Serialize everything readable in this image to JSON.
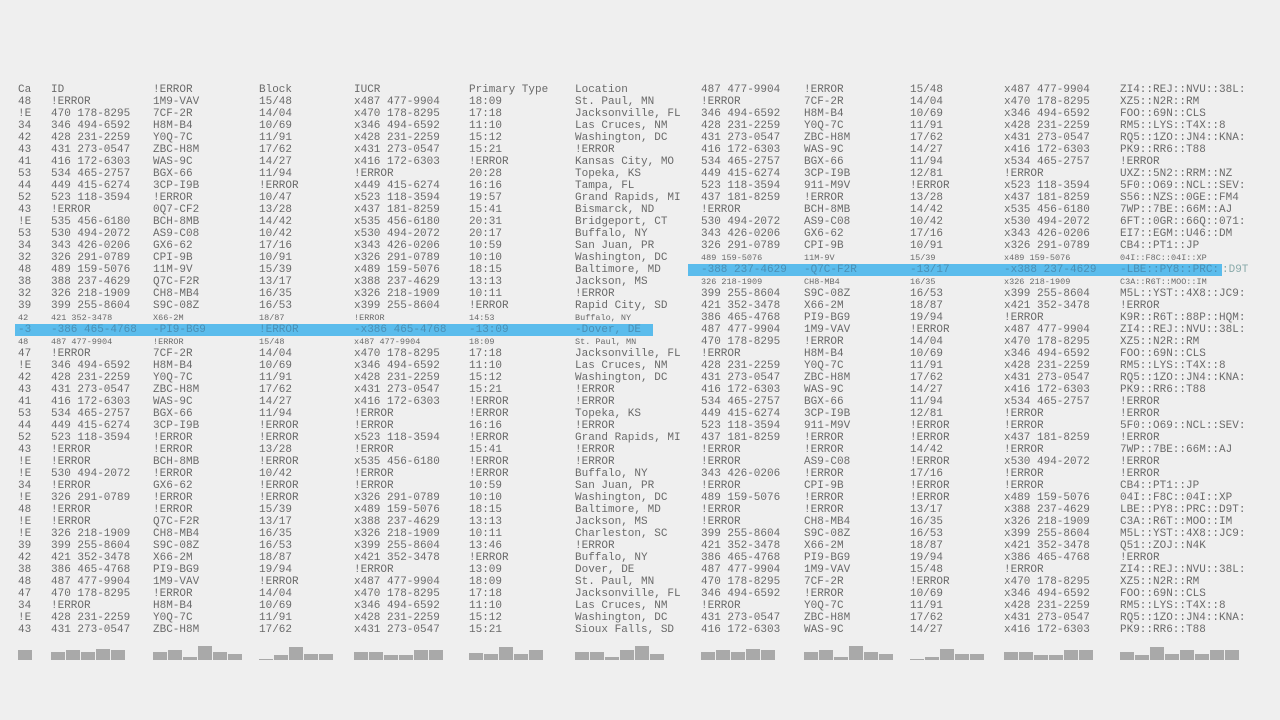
{
  "highlight_color": "#5bbcec",
  "left_table": {
    "headers": [
      "Ca",
      "ID",
      "!ERROR",
      "Block",
      "IUCR",
      "Primary Type",
      "Location"
    ],
    "rows": [
      {
        "cells": [
          "48",
          "!ERROR",
          "1M9-VAV",
          "15/48",
          "x487 477-9904",
          "18:09",
          "St. Paul, MN"
        ]
      },
      {
        "cells": [
          "!E",
          "470 178-8295",
          "7CF-2R",
          "14/04",
          "x470 178-8295",
          "17:18",
          "Jacksonville, FL"
        ]
      },
      {
        "cells": [
          "34",
          "346 494-6592",
          "H8M-B4",
          "10/69",
          "x346 494-6592",
          "11:10",
          "Las Cruces, NM"
        ]
      },
      {
        "cells": [
          "42",
          "428 231-2259",
          "Y0Q-7C",
          "11/91",
          "x428 231-2259",
          "15:12",
          "Washington, DC"
        ]
      },
      {
        "cells": [
          "43",
          "431 273-0547",
          "ZBC-H8M",
          "17/62",
          "x431 273-0547",
          "15:21",
          "!ERROR"
        ]
      },
      {
        "cells": [
          "41",
          "416 172-6303",
          "WAS-9C",
          "14/27",
          "x416 172-6303",
          "!ERROR",
          "Kansas City, MO"
        ]
      },
      {
        "cells": [
          "53",
          "534 465-2757",
          "BGX-66",
          "11/94",
          "!ERROR",
          "20:28",
          "Topeka, KS"
        ]
      },
      {
        "cells": [
          "44",
          "449 415-6274",
          "3CP-I9B",
          "!ERROR",
          "x449 415-6274",
          "16:16",
          "Tampa, FL"
        ]
      },
      {
        "cells": [
          "52",
          "523 118-3594",
          "!ERROR",
          "10/47",
          "x523 118-3594",
          "19:57",
          "Grand Rapids, MI"
        ]
      },
      {
        "cells": [
          "43",
          "!ERROR",
          "0Q7-CF2",
          "13/28",
          "x437 181-8259",
          "15:41",
          "Bismarck, ND"
        ]
      },
      {
        "cells": [
          "!E",
          "535 456-6180",
          "BCH-8MB",
          "14/42",
          "x535 456-6180",
          "20:31",
          "Bridgeport, CT"
        ]
      },
      {
        "cells": [
          "53",
          "530 494-2072",
          "AS9-C08",
          "10/42",
          "x530 494-2072",
          "20:17",
          "Buffalo, NY"
        ]
      },
      {
        "cells": [
          "34",
          "343 426-0206",
          "GX6-62",
          "17/16",
          "x343 426-0206",
          "10:59",
          "San Juan, PR"
        ]
      },
      {
        "cells": [
          "32",
          "326 291-0789",
          "CPI-9B",
          "10/91",
          "x326 291-0789",
          "10:10",
          "Washington, DC"
        ]
      },
      {
        "cells": [
          "48",
          "489 159-5076",
          "11M-9V",
          "15/39",
          "x489 159-5076",
          "18:15",
          "Baltimore, MD"
        ]
      },
      {
        "cells": [
          "38",
          "388 237-4629",
          "Q7C-F2R",
          "13/17",
          "x388 237-4629",
          "13:13",
          "Jackson, MS"
        ]
      },
      {
        "cells": [
          "32",
          "326 218-1909",
          "CH8-MB4",
          "16/35",
          "x326 218-1909",
          "10:11",
          "!ERROR"
        ]
      },
      {
        "cells": [
          "39",
          "399 255-8604",
          "S9C-08Z",
          "16/53",
          "x399 255-8604",
          "!ERROR",
          "Rapid City, SD"
        ]
      },
      {
        "style": "small",
        "cells": [
          "42",
          "421 352-3478",
          "X66-2M",
          "18/87",
          "!ERROR",
          "14:53",
          "Buffalo, NY"
        ]
      },
      {
        "style": "selected",
        "cells": [
          "-3",
          "-386 465-4768",
          "-PI9-BG9",
          "!ERROR",
          "-x386 465-4768",
          "-13:09",
          "-Dover, DE"
        ]
      },
      {
        "style": "small",
        "cells": [
          "48",
          "487 477-9904",
          "!ERROR",
          "15/48",
          "x487 477-9904",
          "18:09",
          "St. Paul, MN"
        ]
      },
      {
        "cells": [
          "47",
          "!ERROR",
          "7CF-2R",
          "14/04",
          "x470 178-8295",
          "17:18",
          "Jacksonville, FL"
        ]
      },
      {
        "cells": [
          "!E",
          "346 494-6592",
          "H8M-B4",
          "10/69",
          "x346 494-6592",
          "11:10",
          "Las Cruces, NM"
        ]
      },
      {
        "cells": [
          "42",
          "428 231-2259",
          "Y0Q-7C",
          "11/91",
          "x428 231-2259",
          "15:12",
          "Washington, DC"
        ]
      },
      {
        "cells": [
          "43",
          "431 273-0547",
          "ZBC-H8M",
          "17/62",
          "x431 273-0547",
          "15:21",
          "!ERROR"
        ]
      },
      {
        "cells": [
          "41",
          "416 172-6303",
          "WAS-9C",
          "14/27",
          "x416 172-6303",
          "!ERROR",
          "!ERROR"
        ]
      },
      {
        "cells": [
          "53",
          "534 465-2757",
          "BGX-66",
          "11/94",
          "!ERROR",
          "!ERROR",
          "Topeka, KS"
        ]
      },
      {
        "cells": [
          "44",
          "449 415-6274",
          "3CP-I9B",
          "!ERROR",
          "!ERROR",
          "16:16",
          "!ERROR"
        ]
      },
      {
        "cells": [
          "52",
          "523 118-3594",
          "!ERROR",
          "!ERROR",
          "x523 118-3594",
          "!ERROR",
          "Grand Rapids, MI"
        ]
      },
      {
        "cells": [
          "43",
          "!ERROR",
          "!ERROR",
          "13/28",
          "!ERROR",
          "15:41",
          "!ERROR"
        ]
      },
      {
        "cells": [
          "!E",
          "!ERROR",
          "BCH-8MB",
          "!ERROR",
          "x535 456-6180",
          "!ERROR",
          "!ERROR"
        ]
      },
      {
        "cells": [
          "!E",
          "530 494-2072",
          "!ERROR",
          "10/42",
          "!ERROR",
          "!ERROR",
          "Buffalo, NY"
        ]
      },
      {
        "cells": [
          "34",
          "!ERROR",
          "GX6-62",
          "!ERROR",
          "!ERROR",
          "10:59",
          "San Juan, PR"
        ]
      },
      {
        "cells": [
          "!E",
          "326 291-0789",
          "!ERROR",
          "!ERROR",
          "x326 291-0789",
          "10:10",
          "Washington, DC"
        ]
      },
      {
        "cells": [
          "48",
          "!ERROR",
          "!ERROR",
          "15/39",
          "x489 159-5076",
          "18:15",
          "Baltimore, MD"
        ]
      },
      {
        "cells": [
          "!E",
          "!ERROR",
          "Q7C-F2R",
          "13/17",
          "x388 237-4629",
          "13:13",
          "Jackson, MS"
        ]
      },
      {
        "cells": [
          "!E",
          "326 218-1909",
          "CH8-MB4",
          "16/35",
          "x326 218-1909",
          "10:11",
          "Charleston, SC"
        ]
      },
      {
        "cells": [
          "39",
          "399 255-8604",
          "S9C-08Z",
          "16/53",
          "x399 255-8604",
          "13:46",
          "!ERROR"
        ]
      },
      {
        "cells": [
          "42",
          "421 352-3478",
          "X66-2M",
          "18/87",
          "x421 352-3478",
          "!ERROR",
          "Buffalo, NY"
        ]
      },
      {
        "cells": [
          "38",
          "386 465-4768",
          "PI9-BG9",
          "19/94",
          "!ERROR",
          "13:09",
          "Dover, DE"
        ]
      },
      {
        "cells": [
          "48",
          "487 477-9904",
          "1M9-VAV",
          "!ERROR",
          "x487 477-9904",
          "18:09",
          "St. Paul, MN"
        ]
      },
      {
        "cells": [
          "47",
          "470 178-8295",
          "!ERROR",
          "14/04",
          "x470 178-8295",
          "17:18",
          "Jacksonville, FL"
        ]
      },
      {
        "cells": [
          "34",
          "!ERROR",
          "H8M-B4",
          "10/69",
          "x346 494-6592",
          "11:10",
          "Las Cruces, NM"
        ]
      },
      {
        "cells": [
          "!E",
          "428 231-2259",
          "Y0Q-7C",
          "11/91",
          "x428 231-2259",
          "15:12",
          "Washington, DC"
        ]
      },
      {
        "cells": [
          "43",
          "431 273-0547",
          "ZBC-H8M",
          "17/62",
          "x431 273-0547",
          "15:21",
          "Sioux Falls, SD"
        ]
      }
    ],
    "column_profiles": [
      [
        0.7
      ],
      [
        0.6,
        0.7,
        0.6,
        0.8,
        0.7
      ],
      [
        0.6,
        0.7,
        0.25,
        1,
        0.6,
        0.4
      ],
      [
        0.1,
        0.35,
        0.9,
        0.45,
        0.45
      ],
      [
        0.6,
        0.6,
        0.35,
        0.35,
        0.7,
        0.7
      ],
      [
        0.5,
        0.4,
        0.9,
        0.4,
        0.7
      ],
      [
        0.6,
        0.6,
        0.25,
        0.7,
        1,
        0.4
      ]
    ]
  },
  "right_table": {
    "rows": [
      {
        "cells": [
          "487 477-9904",
          "!ERROR",
          "15/48",
          "x487 477-9904",
          "ZI4::REJ::NVU::38L:"
        ]
      },
      {
        "cells": [
          "!ERROR",
          "7CF-2R",
          "14/04",
          "x470 178-8295",
          "XZ5::N2R::RM"
        ]
      },
      {
        "cells": [
          "346 494-6592",
          "H8M-B4",
          "10/69",
          "x346 494-6592",
          "FOO::69N::CLS"
        ]
      },
      {
        "cells": [
          "428 231-2259",
          "Y0Q-7C",
          "11/91",
          "x428 231-2259",
          "RM5::LYS::T4X::8"
        ]
      },
      {
        "cells": [
          "431 273-0547",
          "ZBC-H8M",
          "17/62",
          "x431 273-0547",
          "RQ5::1ZO::JN4::KNA:"
        ]
      },
      {
        "cells": [
          "416 172-6303",
          "WAS-9C",
          "14/27",
          "x416 172-6303",
          "PK9::RR6::T88"
        ]
      },
      {
        "cells": [
          "534 465-2757",
          "BGX-66",
          "11/94",
          "x534 465-2757",
          "!ERROR"
        ]
      },
      {
        "cells": [
          "449 415-6274",
          "3CP-I9B",
          "12/81",
          "!ERROR",
          "UXZ::5N2::RRM::NZ"
        ]
      },
      {
        "cells": [
          "523 118-3594",
          "911-M9V",
          "!ERROR",
          "x523 118-3594",
          "5F0::O69::NCL::SEV:"
        ]
      },
      {
        "cells": [
          "437 181-8259",
          "!ERROR",
          "13/28",
          "x437 181-8259",
          "S56::NZS::0GE::FM4"
        ]
      },
      {
        "cells": [
          "!ERROR",
          "BCH-8MB",
          "14/42",
          "x535 456-6180",
          "7WP::7BE::66M::AJ"
        ]
      },
      {
        "cells": [
          "530 494-2072",
          "AS9-C08",
          "10/42",
          "x530 494-2072",
          "6FT::0GR::66Q::071:"
        ]
      },
      {
        "cells": [
          "343 426-0206",
          "GX6-62",
          "17/16",
          "x343 426-0206",
          "EI7::EGM::U46::DM"
        ]
      },
      {
        "cells": [
          "326 291-0789",
          "CPI-9B",
          "10/91",
          "x326 291-0789",
          "CB4::PT1::JP"
        ]
      },
      {
        "style": "small",
        "cells": [
          "489 159-5076",
          "11M-9V",
          "15/39",
          "x489 159-5076",
          "04I::F8C::04I::XP"
        ]
      },
      {
        "style": "selected",
        "cells": [
          "-388 237-4629",
          "-Q7C-F2R",
          "-13/17",
          "-x388 237-4629",
          "-LBE::PY8::PRC:"
        ],
        "overflow": ":D9T"
      },
      {
        "style": "small",
        "cells": [
          "326 218-1909",
          "CH8-MB4",
          "16/35",
          "x326 218-1909",
          "C3A::R6T::MOO::IM"
        ]
      },
      {
        "cells": [
          "399 255-8604",
          "S9C-08Z",
          "16/53",
          "x399 255-8604",
          "M5L::YST::4X8::JC9:"
        ]
      },
      {
        "cells": [
          "421 352-3478",
          "X66-2M",
          "18/87",
          "x421 352-3478",
          "!ERROR"
        ]
      },
      {
        "cells": [
          "386 465-4768",
          "PI9-BG9",
          "19/94",
          "!ERROR",
          "K9R::R6T::88P::HQM:"
        ]
      },
      {
        "cells": [
          "487 477-9904",
          "1M9-VAV",
          "!ERROR",
          "x487 477-9904",
          "ZI4::REJ::NVU::38L:"
        ]
      },
      {
        "cells": [
          "470 178-8295",
          "!ERROR",
          "14/04",
          "x470 178-8295",
          "XZ5::N2R::RM"
        ]
      },
      {
        "cells": [
          "!ERROR",
          "H8M-B4",
          "10/69",
          "x346 494-6592",
          "FOO::69N::CLS"
        ]
      },
      {
        "cells": [
          "428 231-2259",
          "Y0Q-7C",
          "11/91",
          "x428 231-2259",
          "RM5::LYS::T4X::8"
        ]
      },
      {
        "cells": [
          "431 273-0547",
          "ZBC-H8M",
          "17/62",
          "x431 273-0547",
          "RQ5::1ZO::JN4::KNA:"
        ]
      },
      {
        "cells": [
          "416 172-6303",
          "WAS-9C",
          "14/27",
          "x416 172-6303",
          "PK9::RR6::T88"
        ]
      },
      {
        "cells": [
          "534 465-2757",
          "BGX-66",
          "11/94",
          "x534 465-2757",
          "!ERROR"
        ]
      },
      {
        "cells": [
          "449 415-6274",
          "3CP-I9B",
          "12/81",
          "!ERROR",
          "!ERROR"
        ]
      },
      {
        "cells": [
          "523 118-3594",
          "911-M9V",
          "!ERROR",
          "!ERROR",
          "5F0::O69::NCL::SEV:"
        ]
      },
      {
        "cells": [
          "437 181-8259",
          "!ERROR",
          "!ERROR",
          "x437 181-8259",
          "!ERROR"
        ]
      },
      {
        "cells": [
          "!ERROR",
          "!ERROR",
          "14/42",
          "!ERROR",
          "7WP::7BE::66M::AJ"
        ]
      },
      {
        "cells": [
          "!ERROR",
          "AS9-C08",
          "!ERROR",
          "x530 494-2072",
          "!ERROR"
        ]
      },
      {
        "cells": [
          "343 426-0206",
          "!ERROR",
          "17/16",
          "!ERROR",
          "!ERROR"
        ]
      },
      {
        "cells": [
          "!ERROR",
          "CPI-9B",
          "!ERROR",
          "!ERROR",
          "CB4::PT1::JP"
        ]
      },
      {
        "cells": [
          "489 159-5076",
          "!ERROR",
          "!ERROR",
          "x489 159-5076",
          "04I::F8C::04I::XP"
        ]
      },
      {
        "cells": [
          "!ERROR",
          "!ERROR",
          "13/17",
          "x388 237-4629",
          "LBE::PY8::PRC::D9T:"
        ]
      },
      {
        "cells": [
          "!ERROR",
          "CH8-MB4",
          "16/35",
          "x326 218-1909",
          "C3A::R6T::MOO::IM"
        ]
      },
      {
        "cells": [
          "399 255-8604",
          "S9C-08Z",
          "16/53",
          "x399 255-8604",
          "M5L::YST::4X8::JC9:"
        ]
      },
      {
        "cells": [
          "421 352-3478",
          "X66-2M",
          "18/87",
          "x421 352-3478",
          "Q51::ZOJ::N4K"
        ]
      },
      {
        "cells": [
          "386 465-4768",
          "PI9-BG9",
          "19/94",
          "x386 465-4768",
          "!ERROR"
        ]
      },
      {
        "cells": [
          "487 477-9904",
          "1M9-VAV",
          "15/48",
          "!ERROR",
          "ZI4::REJ::NVU::38L:"
        ]
      },
      {
        "cells": [
          "470 178-8295",
          "7CF-2R",
          "!ERROR",
          "x470 178-8295",
          "XZ5::N2R::RM"
        ]
      },
      {
        "cells": [
          "346 494-6592",
          "!ERROR",
          "10/69",
          "x346 494-6592",
          "FOO::69N::CLS"
        ]
      },
      {
        "cells": [
          "!ERROR",
          "Y0Q-7C",
          "11/91",
          "x428 231-2259",
          "RM5::LYS::T4X::8"
        ]
      },
      {
        "cells": [
          "431 273-0547",
          "ZBC-H8M",
          "17/62",
          "x431 273-0547",
          "RQ5::1ZO::JN4::KNA:"
        ]
      },
      {
        "cells": [
          "416 172-6303",
          "WAS-9C",
          "14/27",
          "x416 172-6303",
          "PK9::RR6::T88"
        ]
      }
    ],
    "column_profiles": [
      [
        0.6,
        0.7,
        0.6,
        0.8,
        0.7
      ],
      [
        0.6,
        0.7,
        0.25,
        1,
        0.6,
        0.4
      ],
      [
        0.1,
        0.25,
        0.8,
        0.45,
        0.45
      ],
      [
        0.6,
        0.6,
        0.35,
        0.35,
        0.7,
        0.7
      ],
      [
        0.6,
        0.35,
        0.9,
        0.4,
        0.7,
        0.4,
        0.7,
        0.7
      ]
    ]
  }
}
